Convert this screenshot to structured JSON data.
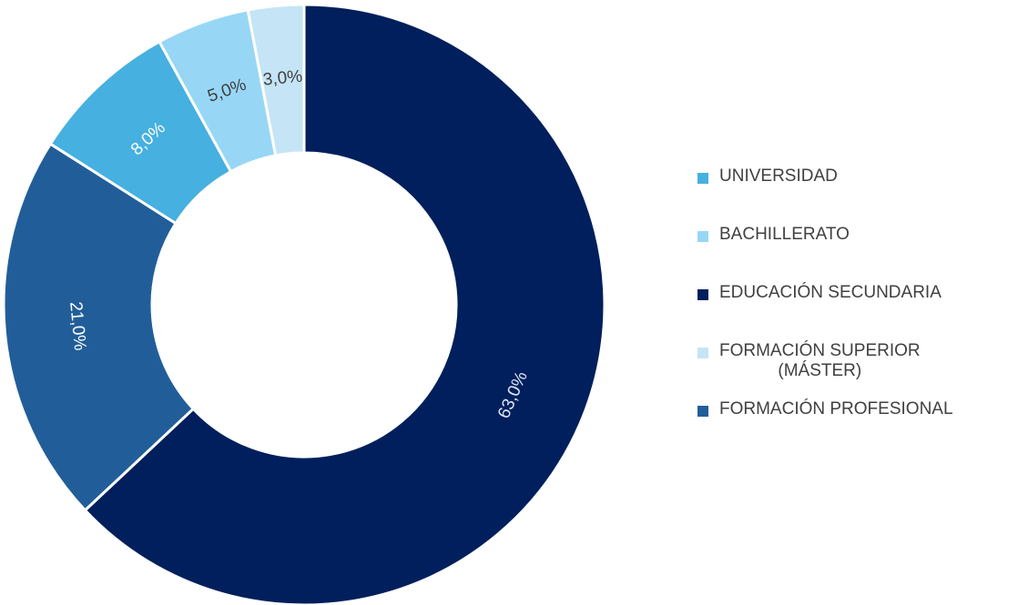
{
  "chart_data": {
    "type": "pie",
    "donut": true,
    "title": "",
    "slices": [
      {
        "label": "EDUCACIÓN SECUNDARIA",
        "value": 63.0,
        "value_label": "63,0%",
        "color": "#001F5C",
        "label_color": "#DCE6F2"
      },
      {
        "label": "FORMACIÓN PROFESIONAL",
        "value": 21.0,
        "value_label": "21,0%",
        "color": "#215E99",
        "label_color": "#FFFFFF"
      },
      {
        "label": "UNIVERSIDAD",
        "value": 8.0,
        "value_label": "8,0%",
        "color": "#46B0E0",
        "label_color": "#FFFFFF"
      },
      {
        "label": "BACHILLERATO",
        "value": 5.0,
        "value_label": "5,0%",
        "color": "#97D7F5",
        "label_color": "#404040"
      },
      {
        "label": "FORMACIÓN SUPERIOR (MÁSTER)",
        "value": 3.0,
        "value_label": "3,0%",
        "color": "#C5E4F5",
        "label_color": "#404040"
      }
    ],
    "legend_position": "right",
    "legend": [
      {
        "label": "UNIVERSIDAD",
        "color": "#46B0E0"
      },
      {
        "label": "BACHILLERATO",
        "color": "#97D7F5"
      },
      {
        "label": "EDUCACIÓN SECUNDARIA",
        "color": "#001F5C"
      },
      {
        "label": "FORMACIÓN SUPERIOR\n(MÁSTER)",
        "color": "#C5E4F5"
      },
      {
        "label": "FORMACIÓN PROFESIONAL",
        "color": "#215E99"
      }
    ]
  }
}
